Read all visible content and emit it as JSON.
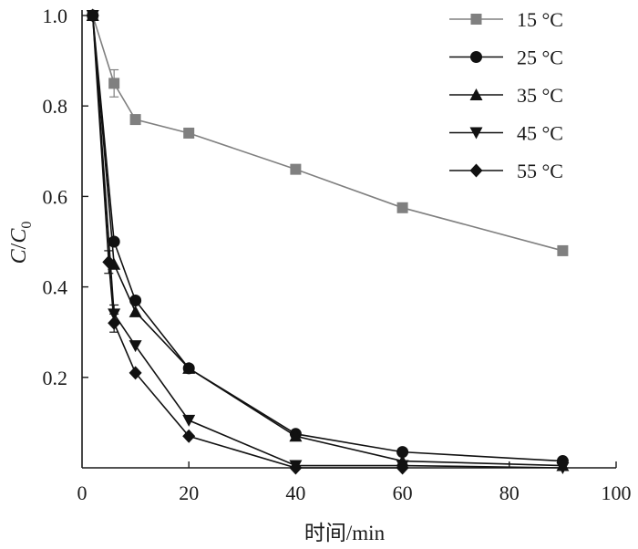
{
  "chart_data": {
    "type": "line",
    "xlabel": "时间/min",
    "ylabel": {
      "main": "C",
      "slash": "/",
      "main2": "C",
      "subscript": "0"
    },
    "xlim": [
      0,
      100
    ],
    "ylim": [
      0,
      1.0
    ],
    "x_ticks": [
      0,
      20,
      40,
      60,
      80,
      100
    ],
    "x_tick_labels": [
      "0",
      "20",
      "40",
      "60",
      "80",
      "100"
    ],
    "y_ticks": [
      0.2,
      0.4,
      0.6,
      0.8,
      1.0
    ],
    "y_tick_labels": [
      "0.2",
      "0.4",
      "0.6",
      "0.8",
      "1.0"
    ],
    "grid": false,
    "legend_position": "top-right",
    "series": [
      {
        "name": "15 °C",
        "marker": "square",
        "color": "#808080",
        "x": [
          2,
          6,
          10,
          20,
          40,
          60,
          90
        ],
        "y": [
          1.0,
          0.85,
          0.77,
          0.74,
          0.66,
          0.575,
          0.48
        ],
        "error": [
          0,
          0.03,
          0,
          0,
          0,
          0,
          0
        ]
      },
      {
        "name": "25 °C",
        "marker": "circle",
        "color": "#111111",
        "x": [
          2,
          6,
          10,
          20,
          40,
          60,
          90
        ],
        "y": [
          1.0,
          0.5,
          0.37,
          0.22,
          0.075,
          0.035,
          0.015
        ],
        "error": [
          0,
          0,
          0,
          0,
          0,
          0,
          0
        ]
      },
      {
        "name": "35 °C",
        "marker": "triangle-up",
        "color": "#111111",
        "x": [
          2,
          6,
          10,
          20,
          40,
          60,
          90
        ],
        "y": [
          1.0,
          0.45,
          0.345,
          0.22,
          0.07,
          0.015,
          0.005
        ],
        "error": [
          0,
          0,
          0,
          0,
          0,
          0,
          0
        ]
      },
      {
        "name": "45 °C",
        "marker": "triangle-down",
        "color": "#111111",
        "x": [
          2,
          6,
          10,
          20,
          40,
          60,
          90
        ],
        "y": [
          1.0,
          0.34,
          0.27,
          0.105,
          0.005,
          0.005,
          0.0
        ],
        "error": [
          0,
          0.02,
          0,
          0,
          0,
          0,
          0
        ]
      },
      {
        "name": "55 °C",
        "marker": "diamond",
        "color": "#111111",
        "x": [
          2,
          5,
          6,
          10,
          20,
          40,
          60
        ],
        "y": [
          1.0,
          0.455,
          0.32,
          0.21,
          0.07,
          0.0,
          0.0
        ],
        "error": [
          0,
          0.025,
          0.02,
          0,
          0,
          0,
          0
        ]
      }
    ]
  }
}
